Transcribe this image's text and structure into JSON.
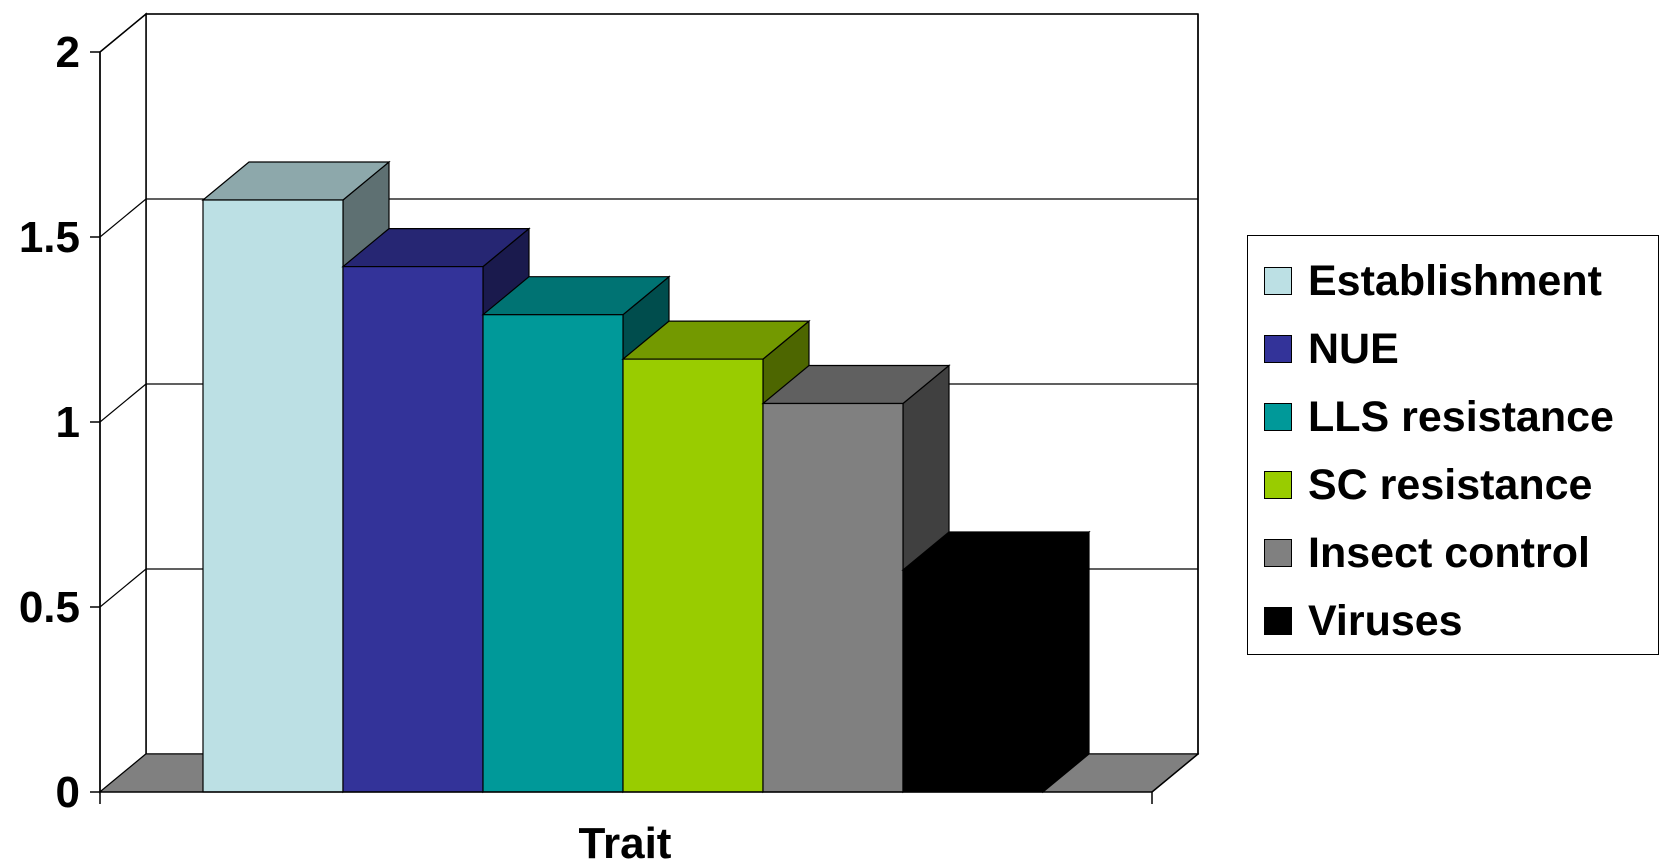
{
  "chart_data": {
    "type": "bar",
    "xlabel": "Trait",
    "ylabel": "",
    "ylim": [
      0,
      2
    ],
    "yticks": [
      "0",
      "0.5",
      "1",
      "1.5",
      "2"
    ],
    "categories": [
      "Trait"
    ],
    "series": [
      {
        "name": "Establishment",
        "values": [
          1.6
        ],
        "color": "#BCE0E4"
      },
      {
        "name": "NUE",
        "values": [
          1.42
        ],
        "color": "#333399"
      },
      {
        "name": "LLS resistance",
        "values": [
          1.29
        ],
        "color": "#009999"
      },
      {
        "name": "SC resistance",
        "values": [
          1.17
        ],
        "color": "#99CC00"
      },
      {
        "name": "Insect control",
        "values": [
          1.05
        ],
        "color": "#808080"
      },
      {
        "name": "Viruses",
        "values": [
          0.6
        ],
        "color": "#000000"
      }
    ],
    "grid": true,
    "legend": "right",
    "style": "3d-column"
  }
}
